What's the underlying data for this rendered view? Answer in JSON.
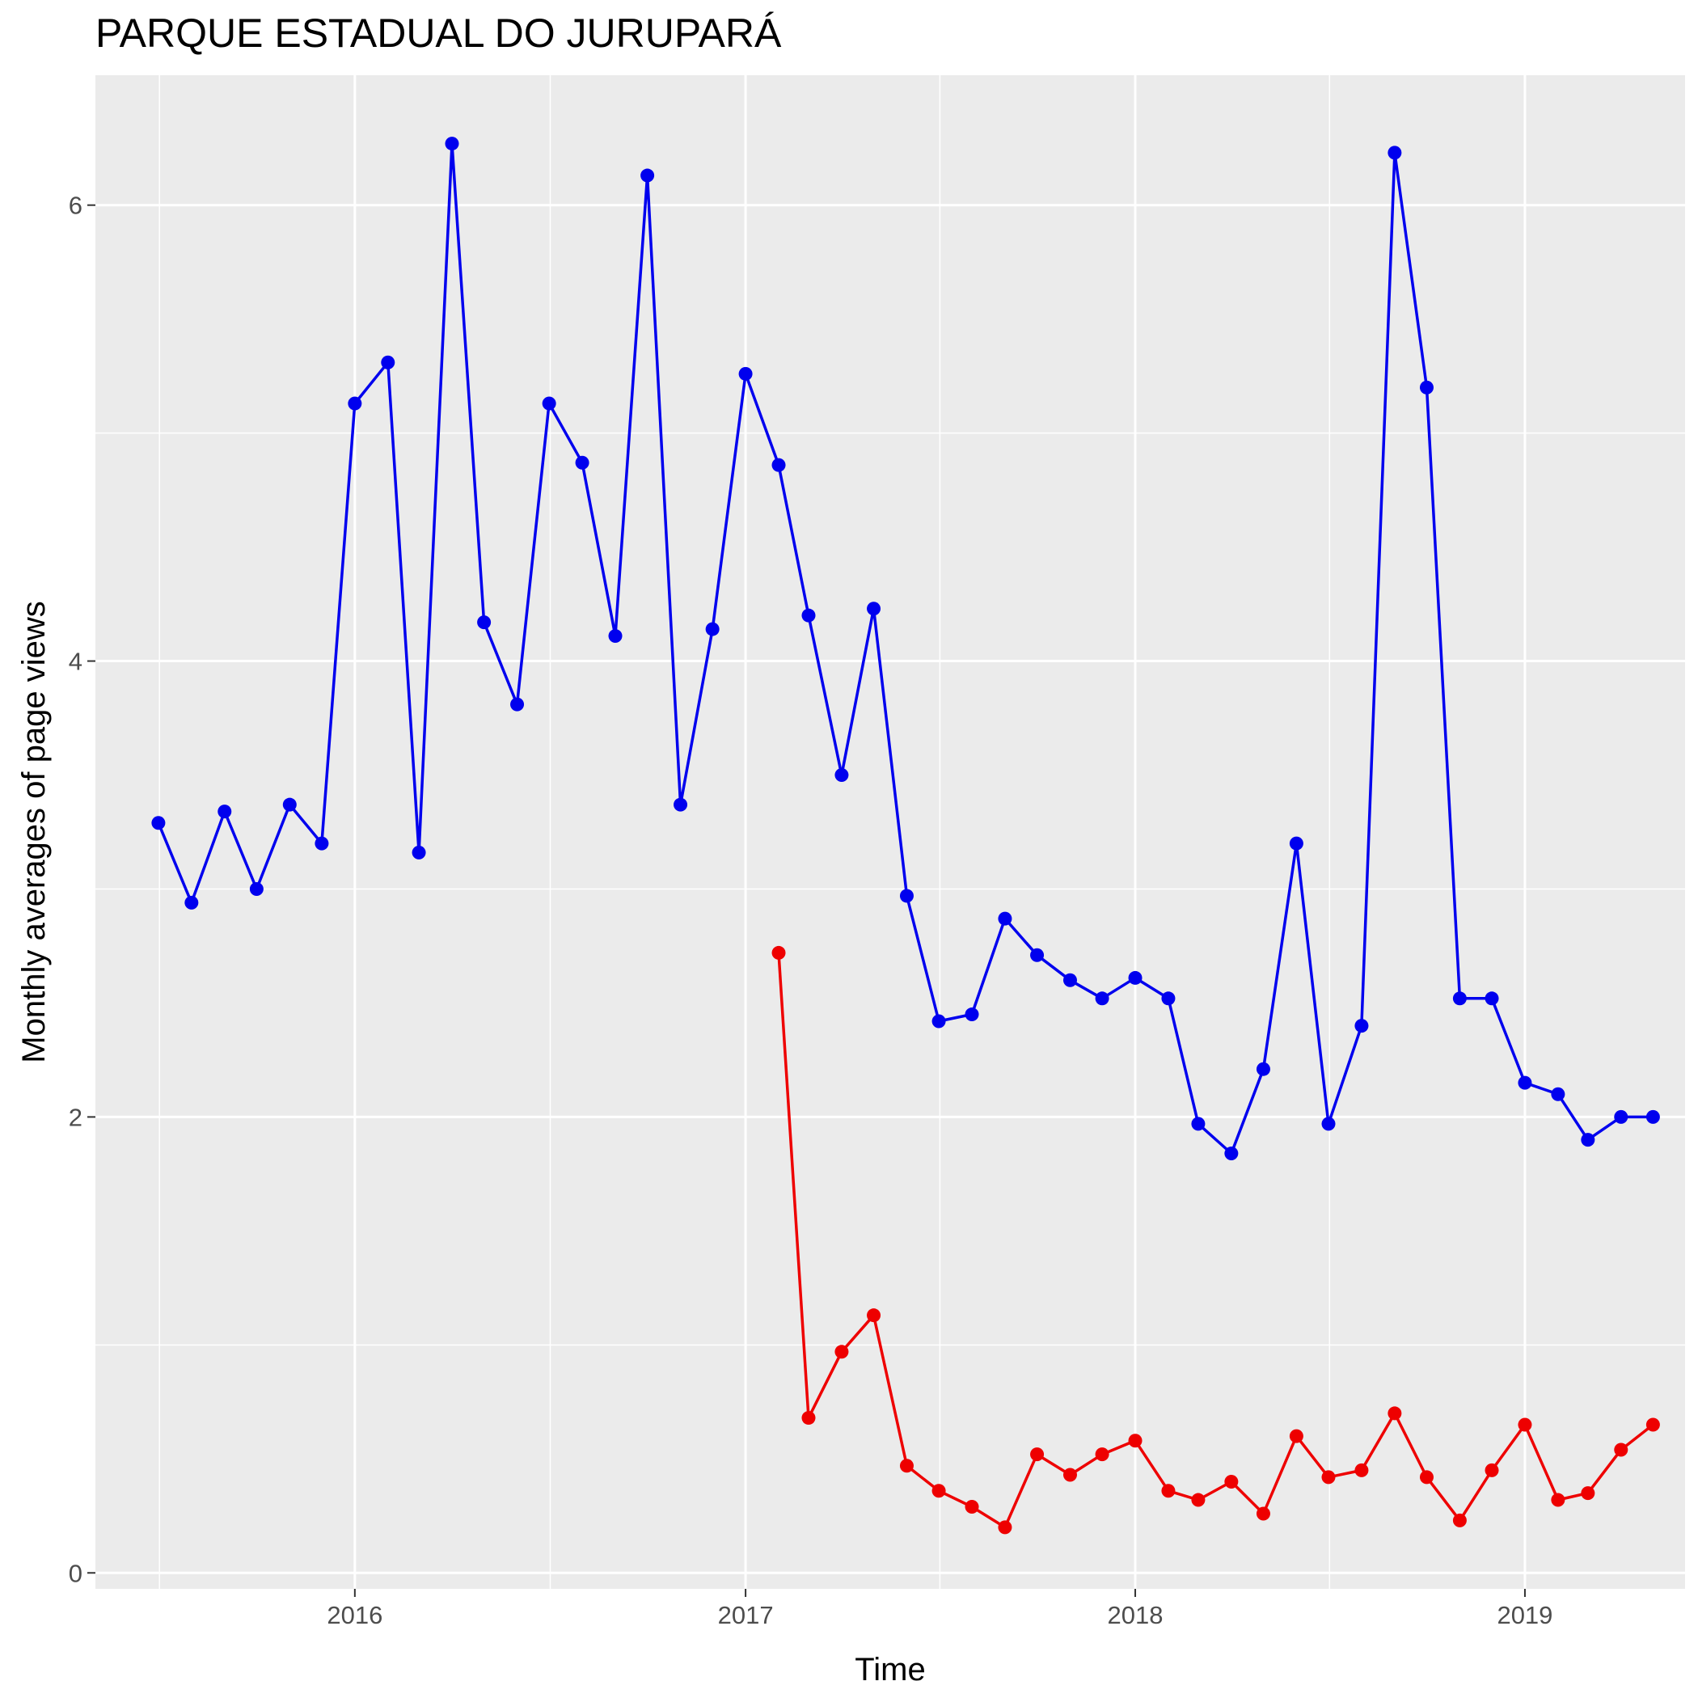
{
  "chart_data": {
    "type": "line",
    "title": "PARQUE ESTADUAL DO JURUPARÁ",
    "xlabel": "Time",
    "ylabel": "Monthly averages of page views",
    "x_ticks": [
      "2016",
      "2017",
      "2018",
      "2019"
    ],
    "y_ticks": [
      "0",
      "2",
      "4",
      "6"
    ],
    "xlim": [
      "2015-05-03",
      "2019-05-31"
    ],
    "ylim": [
      -0.07,
      6.57
    ],
    "grid": true,
    "legend": "none",
    "panel_color": "#ebebeb",
    "series": [
      {
        "color": "#0000ee",
        "x": [
          "2015-07-01",
          "2015-08-01",
          "2015-09-01",
          "2015-10-01",
          "2015-11-01",
          "2015-12-01",
          "2016-01-01",
          "2016-02-01",
          "2016-03-01",
          "2016-04-01",
          "2016-05-01",
          "2016-06-01",
          "2016-07-01",
          "2016-08-01",
          "2016-09-01",
          "2016-10-01",
          "2016-11-01",
          "2016-12-01",
          "2017-01-01",
          "2017-02-01",
          "2017-03-01",
          "2017-04-01",
          "2017-05-01",
          "2017-06-01",
          "2017-07-01",
          "2017-08-01",
          "2017-09-01",
          "2017-10-01",
          "2017-11-01",
          "2017-12-01",
          "2018-01-01",
          "2018-02-01",
          "2018-03-01",
          "2018-04-01",
          "2018-05-01",
          "2018-06-01",
          "2018-07-01",
          "2018-08-01",
          "2018-09-01",
          "2018-10-01",
          "2018-11-01",
          "2018-12-01",
          "2019-01-01",
          "2019-02-01",
          "2019-03-01",
          "2019-04-01",
          "2019-05-01"
        ],
        "y": [
          3.29,
          2.94,
          3.34,
          3.0,
          3.37,
          3.2,
          5.13,
          5.31,
          3.16,
          6.27,
          4.17,
          3.81,
          5.13,
          4.87,
          4.11,
          6.13,
          3.37,
          4.14,
          5.26,
          4.86,
          4.2,
          3.5,
          4.23,
          2.97,
          2.42,
          2.45,
          2.87,
          2.71,
          2.6,
          2.52,
          2.61,
          2.52,
          1.97,
          1.84,
          2.21,
          3.2,
          1.97,
          2.4,
          6.23,
          5.2,
          2.52,
          2.52,
          2.15,
          2.1,
          1.9,
          2.0,
          2.0
        ]
      },
      {
        "color": "#ee0000",
        "x": [
          "2017-02-01",
          "2017-03-01",
          "2017-04-01",
          "2017-05-01",
          "2017-06-01",
          "2017-07-01",
          "2017-08-01",
          "2017-09-01",
          "2017-10-01",
          "2017-11-01",
          "2017-12-01",
          "2018-01-01",
          "2018-02-01",
          "2018-03-01",
          "2018-04-01",
          "2018-05-01",
          "2018-06-01",
          "2018-07-01",
          "2018-08-01",
          "2018-09-01",
          "2018-10-01",
          "2018-11-01",
          "2018-12-01",
          "2019-01-01",
          "2019-02-01",
          "2019-03-01",
          "2019-04-01",
          "2019-05-01"
        ],
        "y": [
          2.72,
          0.68,
          0.97,
          1.13,
          0.47,
          0.36,
          0.29,
          0.2,
          0.52,
          0.43,
          0.52,
          0.58,
          0.36,
          0.32,
          0.4,
          0.26,
          0.6,
          0.42,
          0.45,
          0.7,
          0.42,
          0.23,
          0.45,
          0.65,
          0.32,
          0.35,
          0.54,
          0.65
        ]
      }
    ]
  }
}
